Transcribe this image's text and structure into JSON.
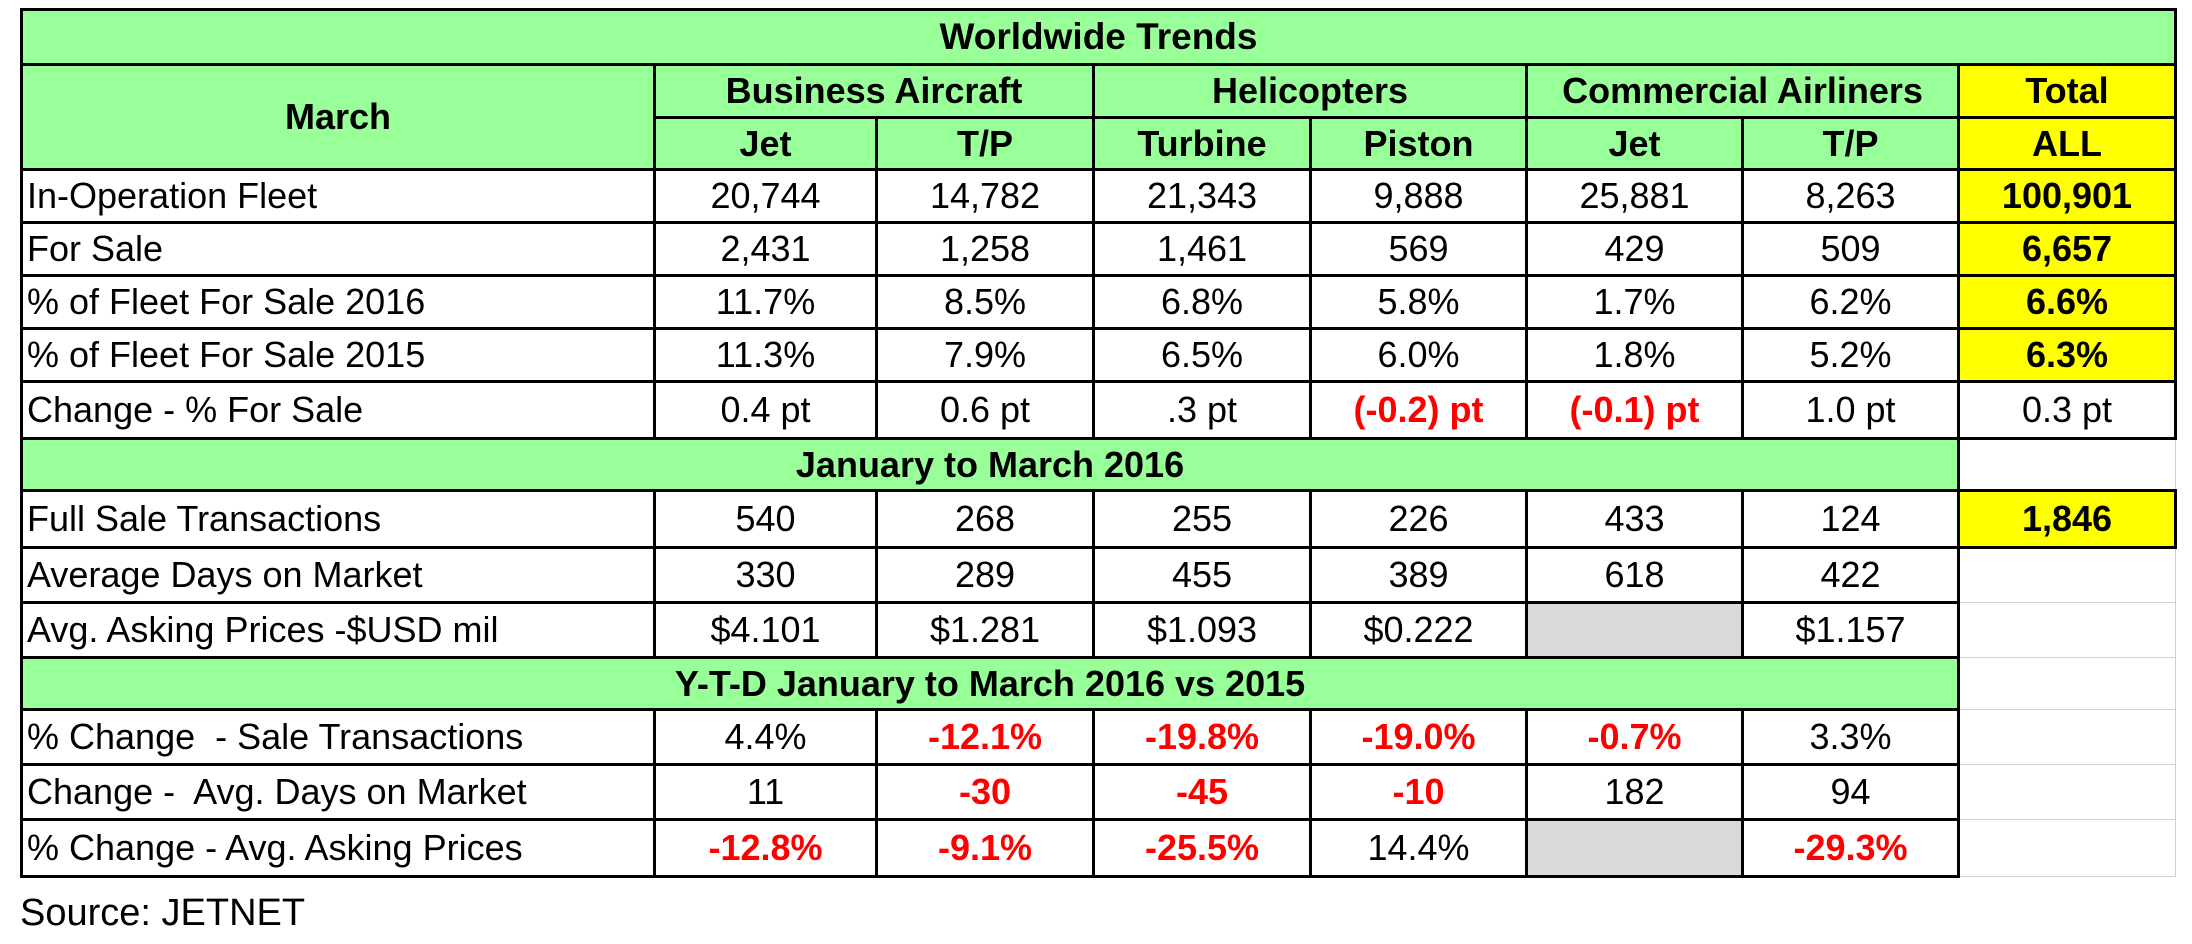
{
  "title": "Worldwide Trends",
  "corner_label": "March",
  "groups": [
    "Business Aircraft",
    "Helicopters",
    "Commercial Airliners"
  ],
  "total_header": [
    "Total",
    "ALL"
  ],
  "subheaders": [
    "Jet",
    "T/P",
    "Turbine",
    "Piston",
    "Jet",
    "T/P"
  ],
  "march_rows": [
    {
      "label": "In-Operation Fleet",
      "values": [
        "20,744",
        "14,782",
        "21,343",
        "9,888",
        "25,881",
        "8,263"
      ],
      "total": "100,901"
    },
    {
      "label": "For Sale",
      "values": [
        "2,431",
        "1,258",
        "1,461",
        "569",
        "429",
        "509"
      ],
      "total": "6,657"
    },
    {
      "label": "% of Fleet For Sale 2016",
      "values": [
        "11.7%",
        "8.5%",
        "6.8%",
        "5.8%",
        "1.7%",
        "6.2%"
      ],
      "total": "6.6%"
    },
    {
      "label": "% of Fleet For Sale 2015",
      "values": [
        "11.3%",
        "7.9%",
        "6.5%",
        "6.0%",
        "1.8%",
        "5.2%"
      ],
      "total": "6.3%"
    },
    {
      "label": "Change - % For Sale",
      "values": [
        "0.4 pt",
        "0.6 pt",
        ".3 pt",
        "(-0.2) pt",
        "(-0.1) pt",
        "1.0 pt"
      ],
      "total": "0.3 pt"
    }
  ],
  "section2_title": "January to March 2016",
  "jan_mar_rows": [
    {
      "label": "Full Sale Transactions",
      "values": [
        "540",
        "268",
        "255",
        "226",
        "433",
        "124"
      ],
      "total": "1,846"
    },
    {
      "label": "Average Days on Market",
      "values": [
        "330",
        "289",
        "455",
        "389",
        "618",
        "422"
      ],
      "total": ""
    },
    {
      "label": "Avg. Asking Prices -$USD mil",
      "values": [
        "$4.101",
        "$1.281",
        "$1.093",
        "$0.222",
        "",
        "$1.157"
      ],
      "total": ""
    }
  ],
  "section3_title": "Y-T-D January to March 2016 vs 2015",
  "ytd_rows": [
    {
      "label": "% Change  - Sale Transactions",
      "values": [
        "4.4%",
        "-12.1%",
        "-19.8%",
        "-19.0%",
        "-0.7%",
        "3.3%"
      ]
    },
    {
      "label": "Change -  Avg. Days on Market",
      "values": [
        "11",
        "-30",
        "-45",
        "-10",
        "182",
        "94"
      ]
    },
    {
      "label": "% Change - Avg. Asking Prices",
      "values": [
        "-12.8%",
        "-9.1%",
        "-25.5%",
        "14.4%",
        "",
        "-29.3%"
      ]
    }
  ],
  "source": "Source: JETNET",
  "colors": {
    "header_green": "#99ff99",
    "total_yellow": "#ffff00",
    "negative_red": "#ff0000",
    "empty_gray": "#d9d9d9"
  }
}
